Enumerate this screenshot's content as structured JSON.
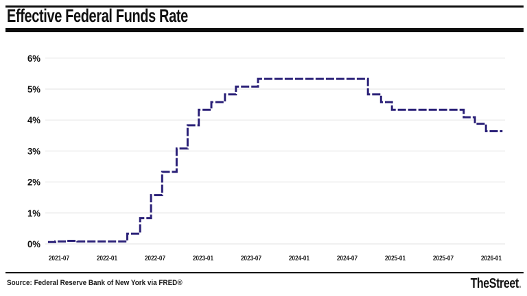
{
  "header": {
    "title": "Effective Federal Funds Rate"
  },
  "footer": {
    "source": "Source: Federal Reserve Bank of New York via FRED®",
    "logo": "TheStreet",
    "logo_dot": "."
  },
  "chart_data": {
    "type": "line",
    "subtype": "step",
    "title": "Effective Federal Funds Rate",
    "xlabel": "",
    "ylabel": "",
    "ylim": [
      0,
      6
    ],
    "ytick_labels": [
      "0%",
      "1%",
      "2%",
      "3%",
      "4%",
      "5%",
      "6%"
    ],
    "xtick_labels": [
      "2021-07",
      "2022-01",
      "2022-07",
      "2023-01",
      "2023-07",
      "2024-01",
      "2024-07",
      "2025-01",
      "2025-07",
      "2026-01"
    ],
    "grid": "horizontal",
    "legend": "none",
    "line_color": "#2b2178",
    "line_style": "dashed",
    "grid_color": "#e8e8e8",
    "series": [
      {
        "name": "Effective Federal Funds Rate (%)",
        "points": [
          [
            "2021-05-20",
            0.06
          ],
          [
            "2021-06-17",
            0.08
          ],
          [
            "2021-07-29",
            0.1
          ],
          [
            "2021-09-10",
            0.08
          ],
          [
            "2022-03-17",
            0.33
          ],
          [
            "2022-05-05",
            0.83
          ],
          [
            "2022-06-16",
            1.58
          ],
          [
            "2022-07-28",
            2.33
          ],
          [
            "2022-09-22",
            3.08
          ],
          [
            "2022-11-03",
            3.83
          ],
          [
            "2022-12-15",
            4.33
          ],
          [
            "2023-02-02",
            4.58
          ],
          [
            "2023-03-23",
            4.83
          ],
          [
            "2023-05-04",
            5.08
          ],
          [
            "2023-07-27",
            5.33
          ],
          [
            "2024-09-19",
            4.83
          ],
          [
            "2024-11-08",
            4.58
          ],
          [
            "2024-12-19",
            4.33
          ],
          [
            "2025-09-18",
            4.09
          ],
          [
            "2025-10-30",
            3.88
          ],
          [
            "2025-12-11",
            3.64
          ],
          [
            "2026-02-13",
            3.64
          ]
        ]
      }
    ]
  }
}
